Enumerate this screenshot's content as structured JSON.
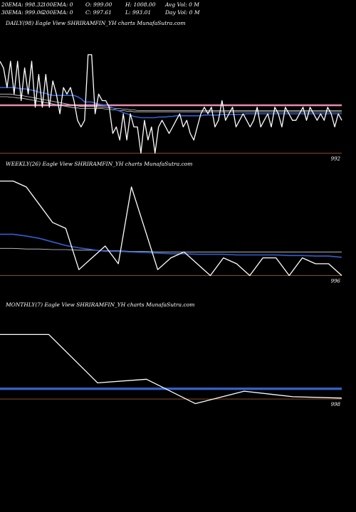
{
  "header": {
    "row1": [
      "20EMA: 998.32",
      "100EMA: 0",
      "O: 999.00",
      "H: 1008.00",
      "Avg Vol: 0  M"
    ],
    "row2": [
      "30EMA: 999.06",
      "200EMA: 0",
      "C: 997.61",
      "L: 993.01",
      "Day Vol: 0  M"
    ]
  },
  "colors": {
    "price": "#ffffff",
    "ema_fast": "#2f5fd0",
    "ema_slow": "#cfcfcf",
    "pivot": "#e98ab0",
    "level": "#8a4a2a"
  },
  "chart_data": [
    {
      "type": "line",
      "title": "DAILY(98) Eagle   View  SHRIRAMFIN_YH charts MunafaSutra.com",
      "level_label": "992",
      "series": [
        {
          "role": "price",
          "values": [
            1006,
            1005,
            1002,
            1006,
            1001,
            1006,
            1000,
            1005,
            1001,
            1006,
            999,
            1004,
            999,
            1004,
            999,
            1003,
            1001,
            998,
            1002,
            1001,
            1002,
            1000,
            997,
            996,
            997,
            1007,
            1007,
            998,
            1001,
            1000,
            1000,
            999,
            995,
            996,
            994,
            998,
            994,
            998,
            996,
            996,
            992,
            997,
            994,
            996,
            992,
            996,
            997,
            996,
            995,
            996,
            997,
            998,
            996,
            997,
            995,
            994,
            996,
            998,
            999,
            998,
            999,
            996,
            997,
            1000,
            997,
            998,
            999,
            996,
            997,
            998,
            997,
            996,
            997,
            999,
            996,
            997,
            998,
            996,
            999,
            998,
            996,
            999,
            998,
            997,
            997,
            998,
            999,
            997,
            999,
            998,
            997,
            998,
            997,
            999,
            998,
            996,
            998,
            997
          ]
        },
        {
          "role": "ema_fast",
          "values": [
            1002,
            1002,
            1002,
            1002,
            1002,
            1001.9,
            1001.8,
            1001.8,
            1001.7,
            1001.6,
            1001.5,
            1001.3,
            1001.2,
            1001.1,
            1000.9,
            1000.8,
            1000.8,
            1000.8,
            1000.8,
            1000.8,
            1000.8,
            1000.8,
            1000.6,
            1000.3,
            999.8,
            999.8,
            999.8,
            999.6,
            999.5,
            999.4,
            999.3,
            999.1,
            998.9,
            998.6,
            998.4,
            998.2,
            998,
            997.8,
            997.6,
            997.5,
            997.4,
            997.4,
            997.4,
            997.4,
            997.4,
            997.5,
            997.5,
            997.5,
            997.6,
            997.6,
            997.7,
            997.7,
            997.7,
            997.7,
            997.7,
            997.7,
            997.7,
            997.7,
            997.8,
            997.8,
            997.8,
            997.8,
            997.8,
            997.9,
            997.9,
            997.9,
            997.9,
            997.9,
            997.9,
            997.9,
            998,
            998,
            998,
            998,
            998,
            998,
            998,
            998,
            998,
            998,
            998,
            998,
            998,
            998,
            998,
            998,
            998,
            998,
            998,
            998,
            998,
            998,
            998,
            998,
            998,
            998,
            998,
            998
          ]
        },
        {
          "role": "ema_slow",
          "values": [
            1001,
            1001,
            1001,
            1001,
            1000.9,
            1000.8,
            1000.8,
            1000.7,
            1000.6,
            1000.5,
            1000.4,
            1000.3,
            1000.2,
            1000.1,
            1000,
            999.9,
            999.8,
            999.7,
            999.6,
            999.5,
            999.4,
            999.3,
            999.2,
            999.1,
            999.1,
            999.1,
            999.1,
            999.1,
            999,
            999,
            999,
            998.9,
            998.9,
            998.8,
            998.8,
            998.7,
            998.7,
            998.6,
            998.6,
            998.5,
            998.5,
            998.5,
            998.5,
            998.5,
            998.5,
            998.5,
            998.5,
            998.5,
            998.5,
            998.5,
            998.5,
            998.5,
            998.5,
            998.5,
            998.5,
            998.5,
            998.5,
            998.5,
            998.5,
            998.5,
            998.5,
            998.5,
            998.5,
            998.5,
            998.5,
            998.5,
            998.5,
            998.5,
            998.5,
            998.5,
            998.5,
            998.5,
            998.5,
            998.5,
            998.5,
            998.5,
            998.5,
            998.5,
            998.5,
            998.5,
            998.5,
            998.5,
            998.5,
            998.5,
            998.5,
            998.5,
            998.5,
            998.5,
            998.5,
            998.5,
            998.5,
            998.5,
            998.5,
            998.5,
            998.5,
            998.5,
            998.5,
            998.5
          ]
        },
        {
          "role": "ema_slow",
          "values": [
            1000.6,
            1000.6,
            1000.6,
            1000.5,
            1000.5,
            1000.4,
            1000.4,
            1000.3,
            1000.2,
            1000.1,
            1000,
            999.9,
            999.8,
            999.7,
            999.6,
            999.5,
            999.4,
            999.3,
            999.2,
            999.1,
            999,
            998.9,
            998.9,
            998.8,
            998.8,
            998.8,
            998.8,
            998.8,
            998.8,
            998.8,
            998.7,
            998.7,
            998.6,
            998.6,
            998.5,
            998.5,
            998.4,
            998.4,
            998.3,
            998.3,
            998.3,
            998.3,
            998.3,
            998.3,
            998.3,
            998.3,
            998.3,
            998.3,
            998.3,
            998.3,
            998.3,
            998.3,
            998.3,
            998.3,
            998.3,
            998.3,
            998.3,
            998.3,
            998.3,
            998.3,
            998.3,
            998.3,
            998.3,
            998.3,
            998.3,
            998.3,
            998.3,
            998.3,
            998.3,
            998.3,
            998.3,
            998.3,
            998.3,
            998.3,
            998.3,
            998.3,
            998.3,
            998.3,
            998.3,
            998.3,
            998.3,
            998.3,
            998.3,
            998.3,
            998.3,
            998.3,
            998.3,
            998.3,
            998.3,
            998.3,
            998.3,
            998.3,
            998.3,
            998.3,
            998.3,
            998.3,
            998.3,
            998.3
          ]
        }
      ],
      "pivot": 999.3,
      "level": 992,
      "ylim": [
        991.5,
        1011
      ]
    },
    {
      "type": "line",
      "title": "WEEKLY(26) Eagle   View  SHRIRAMFIN_YH charts MunafaSutra.com",
      "level_label": "996",
      "series": [
        {
          "role": "price",
          "values": [
            1012,
            1012,
            1011,
            1008,
            1005,
            1004,
            997,
            999,
            1001,
            998,
            1011,
            1004,
            997,
            999,
            1000,
            998,
            996,
            999,
            998,
            996,
            999,
            999,
            996,
            999,
            998,
            998,
            996
          ]
        },
        {
          "role": "ema_fast",
          "values": [
            1003,
            1003,
            1002.7,
            1002.3,
            1001.7,
            1001.1,
            1000.7,
            1000.4,
            1000.1,
            1000.1,
            1000,
            999.9,
            999.8,
            999.7,
            999.7,
            999.6,
            999.6,
            999.6,
            999.5,
            999.5,
            999.5,
            999.5,
            999.4,
            999.4,
            999.3,
            999.3,
            999.1
          ]
        },
        {
          "role": "ema_slow",
          "values": [
            1000.6,
            1000.6,
            1000.5,
            1000.5,
            1000.4,
            1000.4,
            1000.3,
            1000.3,
            1000.2,
            1000.2,
            1000.1,
            1000.1,
            1000,
            1000,
            1000,
            1000,
            1000,
            1000,
            1000,
            1000,
            1000,
            1000,
            1000,
            1000,
            1000,
            1000,
            1000
          ]
        }
      ],
      "level": 996,
      "ylim": [
        994.5,
        1014
      ]
    },
    {
      "type": "line",
      "title": "MONTHLY(7) Eagle   View  SHRIRAMFIN_YH charts MunafaSutra.com",
      "level_label": "998",
      "series": [
        {
          "role": "price",
          "values": [
            1012,
            1012,
            1001.5,
            1002.3,
            997,
            999.7,
            998.5,
            998.2
          ]
        },
        {
          "role": "ema_fast",
          "values": [
            1000.2,
            1000.2,
            1000.2,
            1000.2,
            1000.2,
            1000.2,
            1000.2,
            1000.2
          ]
        },
        {
          "role": "ema_slow",
          "values": [
            1000.4,
            1000.4,
            1000.4,
            1000.4,
            1000.4,
            1000.4,
            1000.4,
            1000.4
          ]
        }
      ],
      "level": 998,
      "ylim": [
        992,
        1017
      ]
    }
  ]
}
